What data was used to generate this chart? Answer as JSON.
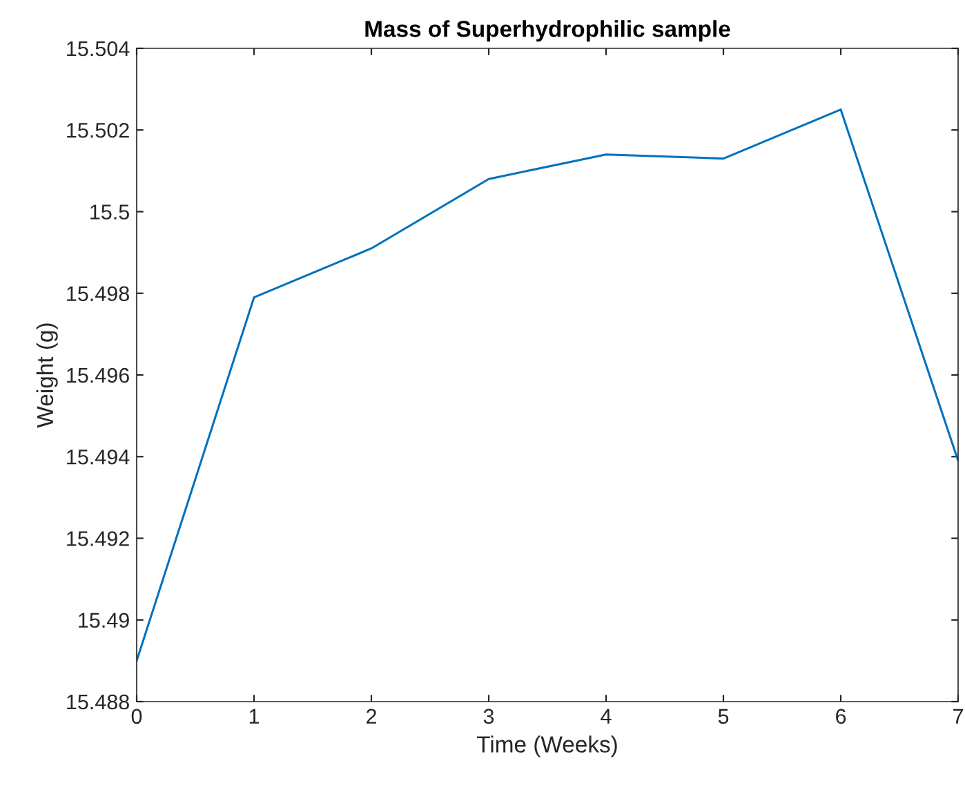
{
  "chart_data": {
    "type": "line",
    "title": "Mass of Superhydrophilic sample",
    "xlabel": "Time (Weeks)",
    "ylabel": "Weight (g)",
    "x": [
      0,
      1,
      2,
      3,
      4,
      5,
      6,
      7
    ],
    "series": [
      {
        "color": "#0072bd",
        "values": [
          15.489,
          15.4979,
          15.4991,
          15.5008,
          15.5014,
          15.5013,
          15.5025,
          15.4939
        ]
      }
    ],
    "xlim": [
      0,
      7
    ],
    "ylim": [
      15.488,
      15.504
    ],
    "xticks": [
      0,
      1,
      2,
      3,
      4,
      5,
      6,
      7
    ],
    "yticks": [
      15.488,
      15.49,
      15.492,
      15.494,
      15.496,
      15.498,
      15.5,
      15.502,
      15.504
    ],
    "grid": false,
    "legend": false,
    "marker": "none",
    "line_style": "solid"
  }
}
